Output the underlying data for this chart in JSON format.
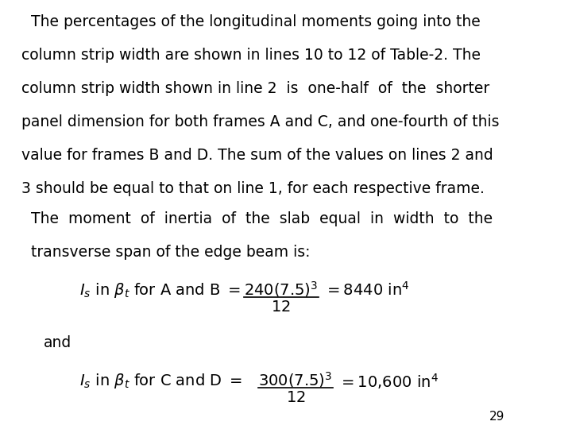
{
  "background_color": "#ffffff",
  "page_number": "29",
  "font_size_body": 13.5,
  "font_size_formula": 14,
  "font_size_page": 11,
  "lines_p1": [
    "  The percentages of the longitudinal moments going into the",
    "column strip width are shown in lines 10 to 12 of Table-2. The",
    "column strip width shown in line 2  is  one-half  of  the  shorter",
    "panel dimension for both frames A and C, and one-fourth of this",
    "value for frames B and D. The sum of the values on lines 2 and",
    "3 should be equal to that on line 1, for each respective frame."
  ],
  "lines_p2": [
    "  The  moment  of  inertia  of  the  slab  equal  in  width  to  the",
    "  transverse span of the edge beam is:"
  ],
  "and_text": "and",
  "f1_left": "$I_s$ in $\\beta_t$ for A and B $=$",
  "f1_num": "$240(7.5)^3$",
  "f1_den": "$12$",
  "f1_right": "$= 8440$ in$^4$",
  "f2_left": "$I_s$ in $\\beta_t$ for C and D $=$",
  "f2_num": "$300(7.5)^3$",
  "f2_den": "$12$",
  "f2_right": "$= 10{,}600$ in$^4$"
}
